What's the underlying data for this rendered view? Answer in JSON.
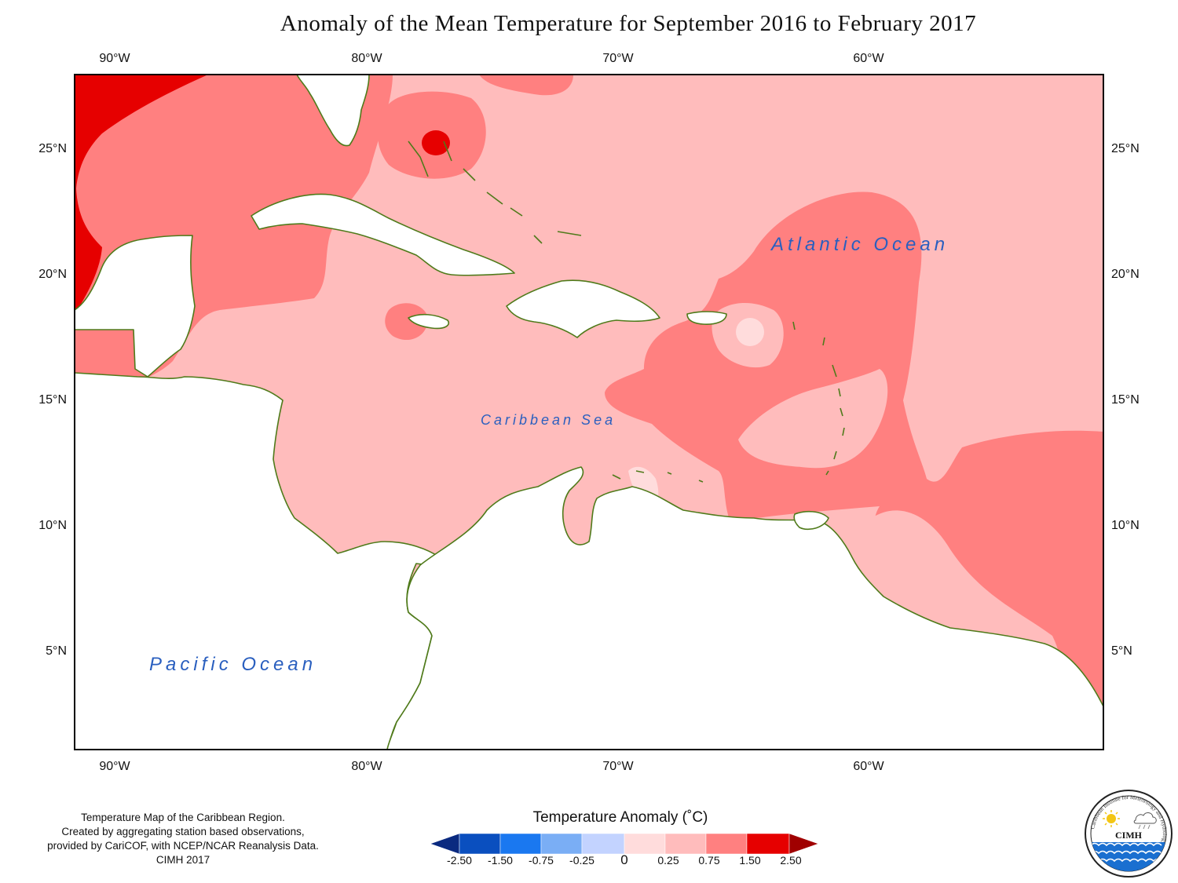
{
  "title": "Anomaly of the Mean Temperature for September 2016 to February 2017",
  "map": {
    "lon_labels": [
      "90°W",
      "80°W",
      "70°W",
      "60°W"
    ],
    "lat_labels_left": [
      "25°N",
      "20°N",
      "15°N",
      "10°N",
      "5°N"
    ],
    "lat_labels_right": [
      "25°N",
      "20°N",
      "15°N",
      "10°N",
      "5°N"
    ],
    "ocean_labels": {
      "atlantic": "Atlantic Ocean",
      "caribbean": "Caribbean Sea",
      "pacific": "Pacific Ocean"
    },
    "colors": {
      "land": "#ffffff",
      "coast": "#4f7a1a",
      "anom_0_025": "#ffdcdc",
      "anom_025_075": "#ffbcbc",
      "anom_075_150": "#ff8080",
      "anom_150_250": "#e60000",
      "anom_neg_025_0": "#c3d3ff"
    }
  },
  "credits": {
    "line1": "Temperature Map of the Caribbean Region.",
    "line2": "Created by aggregating station based observations,",
    "line3": "provided by CariCOF, with NCEP/NCAR Reanalysis Data.",
    "line4": "CIMH 2017"
  },
  "legend": {
    "title": "Temperature Anomaly (˚C)",
    "labels": [
      "-2.50",
      "-1.50",
      "-0.75",
      "-0.25",
      "0",
      "0.25",
      "0.75",
      "1.50",
      "2.50"
    ],
    "colors": [
      "#0a2a80",
      "#0a4fbf",
      "#1a78f0",
      "#7aaef5",
      "#c3d3ff",
      "#ffdcdc",
      "#ffbcbc",
      "#ff8080",
      "#e60000",
      "#a00000"
    ]
  },
  "logo": {
    "text": "CIMH",
    "ring_text": "Caribbean Institute for Meteorology and Hydrology"
  }
}
